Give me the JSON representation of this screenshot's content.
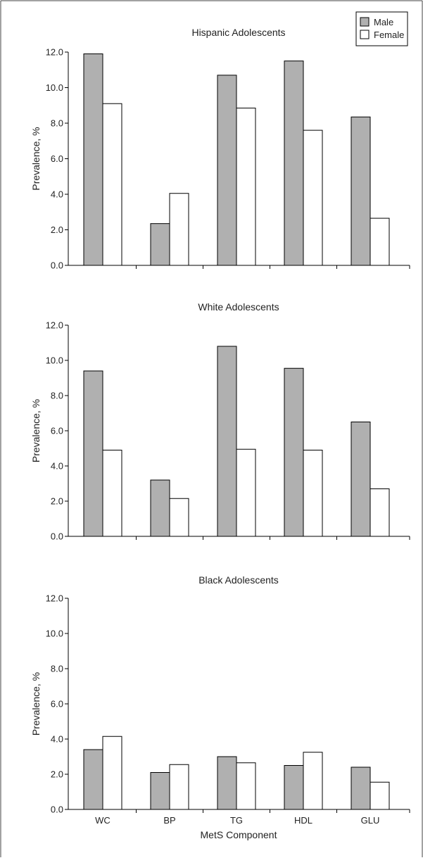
{
  "colors": {
    "male": "#b0b0b0",
    "female": "#ffffff",
    "stroke": "#000000"
  },
  "legend": {
    "items": [
      {
        "name": "Male",
        "color": "#b0b0b0"
      },
      {
        "name": "Female",
        "color": "#ffffff"
      }
    ],
    "placement": "top-right"
  },
  "xlabel": "MetS Component",
  "chart_data": [
    {
      "type": "bar",
      "title": "Hispanic Adolescents",
      "ylabel": "Prevalence, %",
      "categories": [
        "WC",
        "BP",
        "TG",
        "HDL",
        "GLU"
      ],
      "series": [
        {
          "name": "Male",
          "values": [
            11.9,
            2.35,
            10.7,
            11.5,
            8.35
          ]
        },
        {
          "name": "Female",
          "values": [
            9.1,
            4.05,
            8.85,
            7.6,
            2.65
          ]
        }
      ],
      "ylim": [
        0,
        12
      ],
      "yticks": [
        "0.0",
        "2.0",
        "4.0",
        "6.0",
        "8.0",
        "10.0",
        "12.0"
      ],
      "show_category_labels": false
    },
    {
      "type": "bar",
      "title": "White Adolescents",
      "ylabel": "Prevalence, %",
      "categories": [
        "WC",
        "BP",
        "TG",
        "HDL",
        "GLU"
      ],
      "series": [
        {
          "name": "Male",
          "values": [
            9.4,
            3.2,
            10.8,
            9.55,
            6.5
          ]
        },
        {
          "name": "Female",
          "values": [
            4.9,
            2.15,
            4.95,
            4.9,
            2.7
          ]
        }
      ],
      "ylim": [
        0,
        12
      ],
      "yticks": [
        "0.0",
        "2.0",
        "4.0",
        "6.0",
        "8.0",
        "10.0",
        "12.0"
      ],
      "show_category_labels": false
    },
    {
      "type": "bar",
      "title": "Black Adolescents",
      "ylabel": "Prevalence, %",
      "categories": [
        "WC",
        "BP",
        "TG",
        "HDL",
        "GLU"
      ],
      "series": [
        {
          "name": "Male",
          "values": [
            3.4,
            2.1,
            3.0,
            2.5,
            2.4
          ]
        },
        {
          "name": "Female",
          "values": [
            4.15,
            2.55,
            2.65,
            3.25,
            1.55
          ]
        }
      ],
      "ylim": [
        0,
        12
      ],
      "yticks": [
        "0.0",
        "2.0",
        "4.0",
        "6.0",
        "8.0",
        "10.0",
        "12.0"
      ],
      "show_category_labels": true
    }
  ]
}
